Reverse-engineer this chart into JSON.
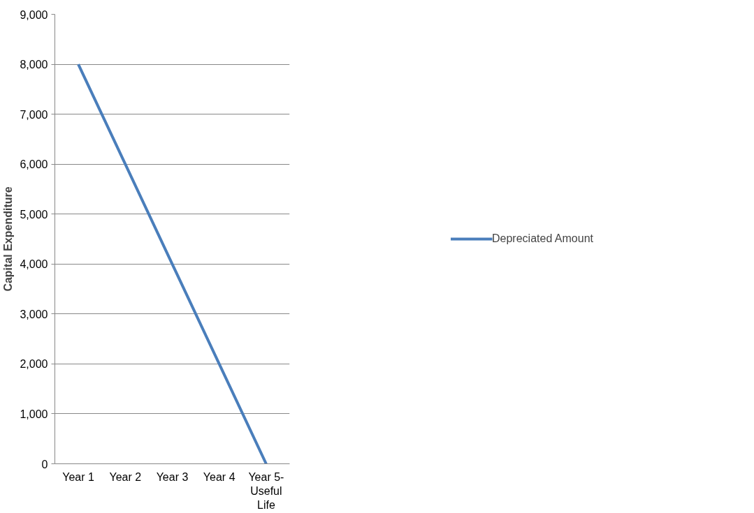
{
  "chart_data": {
    "type": "line",
    "ylabel": "Capital Expenditure",
    "categories": [
      "Year 1",
      "Year 2",
      "Year 3",
      "Year 4",
      "Year 5- Useful Life"
    ],
    "series": [
      {
        "name": "Depreciated Amount",
        "color": "#4a7ebb",
        "values": [
          8000,
          6000,
          4000,
          2000,
          0
        ]
      }
    ],
    "ylim": [
      0,
      9000
    ],
    "yticks": [
      {
        "value": 0,
        "label": "0"
      },
      {
        "value": 1000,
        "label": "1,000"
      },
      {
        "value": 2000,
        "label": "2,000"
      },
      {
        "value": 3000,
        "label": "3,000"
      },
      {
        "value": 4000,
        "label": "4,000"
      },
      {
        "value": 5000,
        "label": "5,000"
      },
      {
        "value": 6000,
        "label": "6,000"
      },
      {
        "value": 7000,
        "label": "7,000"
      },
      {
        "value": 8000,
        "label": "8,000"
      },
      {
        "value": 9000,
        "label": "9,000"
      }
    ],
    "grid": "y",
    "legend": "right",
    "marker": "none",
    "line_style": "solid"
  }
}
